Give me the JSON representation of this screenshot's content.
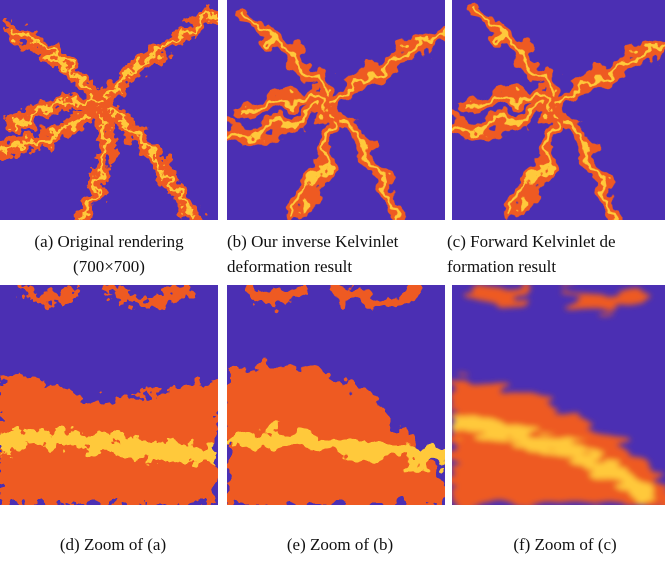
{
  "panels": [
    {
      "caption": [
        "(a) Original rendering",
        "(700×700)"
      ]
    },
    {
      "caption": [
        "(b) Our inverse Kelvinlet",
        "deformation result"
      ]
    },
    {
      "caption": [
        "(c) Forward Kelvinlet de",
        "formation result"
      ]
    },
    {
      "caption": [
        "(d) Zoom of (a)"
      ]
    },
    {
      "caption": [
        "(e) Zoom of (b)"
      ]
    },
    {
      "caption": [
        "(f) Zoom of (c)"
      ]
    }
  ]
}
